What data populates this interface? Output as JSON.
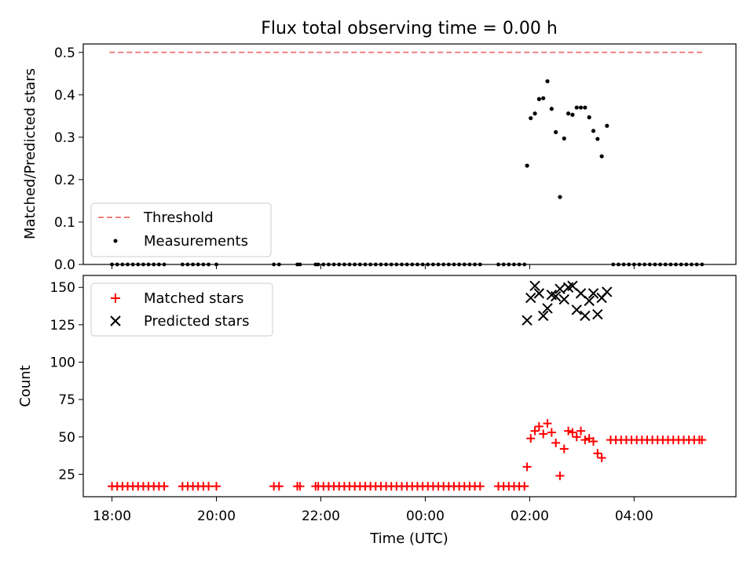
{
  "chart_data": [
    {
      "type": "scatter",
      "title": "Flux total observing time = 0.00 h",
      "ylabel": "Matched/Predicted stars",
      "xlabel": "",
      "ylim": [
        0,
        0.52
      ],
      "yticks": [
        "0.0",
        "0.1",
        "0.2",
        "0.3",
        "0.4",
        "0.5"
      ],
      "ytick_values": [
        0,
        0.1,
        0.2,
        0.3,
        0.4,
        0.5
      ],
      "threshold": {
        "name": "Threshold",
        "value": 0.5,
        "x_range": [
          17.95,
          29.3
        ],
        "color": "#f08080"
      },
      "legend": {
        "placement": "lower-left",
        "entries": [
          {
            "label": "Threshold",
            "kind": "dashed-line",
            "color": "#f08080"
          },
          {
            "label": "Measurements",
            "kind": "dot",
            "color": "#000000"
          }
        ]
      },
      "series": [
        {
          "name": "Measurements",
          "color": "#000000",
          "zero_x": [
            18.0,
            18.1,
            18.2,
            18.3,
            18.4,
            18.5,
            18.6,
            18.7,
            18.8,
            18.9,
            19.0,
            19.35,
            19.45,
            19.55,
            19.65,
            19.75,
            19.85,
            20.0,
            21.1,
            21.2,
            21.55,
            21.6,
            21.9,
            21.95,
            22.05,
            22.15,
            22.25,
            22.35,
            22.45,
            22.55,
            22.65,
            22.75,
            22.85,
            22.95,
            23.05,
            23.15,
            23.25,
            23.35,
            23.45,
            23.55,
            23.65,
            23.75,
            23.85,
            23.95,
            24.05,
            24.15,
            24.25,
            24.35,
            24.45,
            24.55,
            24.65,
            24.75,
            24.85,
            24.95,
            25.05,
            25.4,
            25.5,
            25.6,
            25.7,
            25.8,
            25.9,
            27.6,
            27.7,
            27.8,
            27.9,
            28.0,
            28.1,
            28.2,
            28.3,
            28.4,
            28.5,
            28.6,
            28.7,
            28.8,
            28.9,
            29.0,
            29.1,
            29.2,
            29.3
          ],
          "points": [
            [
              25.95,
              0.233
            ],
            [
              26.02,
              0.345
            ],
            [
              26.1,
              0.356
            ],
            [
              26.18,
              0.39
            ],
            [
              26.26,
              0.392
            ],
            [
              26.34,
              0.432
            ],
            [
              26.42,
              0.367
            ],
            [
              26.5,
              0.312
            ],
            [
              26.58,
              0.159
            ],
            [
              26.66,
              0.297
            ],
            [
              26.74,
              0.356
            ],
            [
              26.82,
              0.353
            ],
            [
              26.9,
              0.37
            ],
            [
              26.98,
              0.37
            ],
            [
              27.06,
              0.37
            ],
            [
              27.14,
              0.347
            ],
            [
              27.22,
              0.315
            ],
            [
              27.3,
              0.296
            ],
            [
              27.38,
              0.255
            ],
            [
              27.48,
              0.327
            ]
          ]
        }
      ]
    },
    {
      "type": "scatter",
      "title": "",
      "ylabel": "Count",
      "xlabel": "Time (UTC)",
      "ylim": [
        10,
        158
      ],
      "yticks": [
        "25",
        "50",
        "75",
        "100",
        "125",
        "150"
      ],
      "ytick_values": [
        25,
        50,
        75,
        100,
        125,
        150
      ],
      "xlim": [
        17.45,
        29.95
      ],
      "xtick_values": [
        18,
        20,
        22,
        24,
        26,
        28
      ],
      "xticks": [
        "18:00",
        "20:00",
        "22:00",
        "00:00",
        "02:00",
        "04:00"
      ],
      "legend": {
        "placement": "upper-left",
        "entries": [
          {
            "label": "Matched stars",
            "kind": "plus",
            "color": "#ff0000"
          },
          {
            "label": "Predicted stars",
            "kind": "cross",
            "color": "#000000"
          }
        ]
      },
      "series": [
        {
          "name": "Matched stars",
          "color": "#ff0000",
          "low_value": 17,
          "low_x": [
            18.0,
            18.1,
            18.2,
            18.3,
            18.4,
            18.5,
            18.6,
            18.7,
            18.8,
            18.9,
            19.0,
            19.35,
            19.45,
            19.55,
            19.65,
            19.75,
            19.85,
            20.0,
            21.1,
            21.2,
            21.55,
            21.6,
            21.9,
            21.95,
            22.05,
            22.15,
            22.25,
            22.35,
            22.45,
            22.55,
            22.65,
            22.75,
            22.85,
            22.95,
            23.05,
            23.15,
            23.25,
            23.35,
            23.45,
            23.55,
            23.65,
            23.75,
            23.85,
            23.95,
            24.05,
            24.15,
            24.25,
            24.35,
            24.45,
            24.55,
            24.65,
            24.75,
            24.85,
            24.95,
            25.05,
            25.4,
            25.5,
            25.6,
            25.7,
            25.8,
            25.9
          ],
          "high_value": 48,
          "high_x": [
            27.55,
            27.65,
            27.75,
            27.85,
            27.95,
            28.05,
            28.15,
            28.25,
            28.35,
            28.45,
            28.55,
            28.65,
            28.75,
            28.85,
            28.95,
            29.05,
            29.15,
            29.25,
            29.3
          ],
          "points": [
            [
              25.95,
              30
            ],
            [
              26.02,
              49
            ],
            [
              26.1,
              54
            ],
            [
              26.18,
              57
            ],
            [
              26.26,
              52
            ],
            [
              26.34,
              59
            ],
            [
              26.42,
              53
            ],
            [
              26.5,
              46
            ],
            [
              26.58,
              24
            ],
            [
              26.66,
              42
            ],
            [
              26.74,
              54
            ],
            [
              26.82,
              53
            ],
            [
              26.9,
              50
            ],
            [
              26.98,
              54
            ],
            [
              27.06,
              48
            ],
            [
              27.14,
              49
            ],
            [
              27.22,
              47
            ],
            [
              27.3,
              39
            ],
            [
              27.38,
              36
            ]
          ]
        },
        {
          "name": "Predicted stars",
          "color": "#000000",
          "points": [
            [
              25.95,
              128
            ],
            [
              26.02,
              143
            ],
            [
              26.1,
              151
            ],
            [
              26.18,
              146
            ],
            [
              26.26,
              131
            ],
            [
              26.34,
              136
            ],
            [
              26.42,
              145
            ],
            [
              26.5,
              144
            ],
            [
              26.58,
              149
            ],
            [
              26.66,
              142
            ],
            [
              26.74,
              150
            ],
            [
              26.82,
              151
            ],
            [
              26.9,
              135
            ],
            [
              26.98,
              146
            ],
            [
              27.06,
              131
            ],
            [
              27.14,
              141
            ],
            [
              27.22,
              146
            ],
            [
              27.3,
              132
            ],
            [
              27.38,
              143
            ],
            [
              27.48,
              147
            ]
          ]
        }
      ]
    }
  ]
}
